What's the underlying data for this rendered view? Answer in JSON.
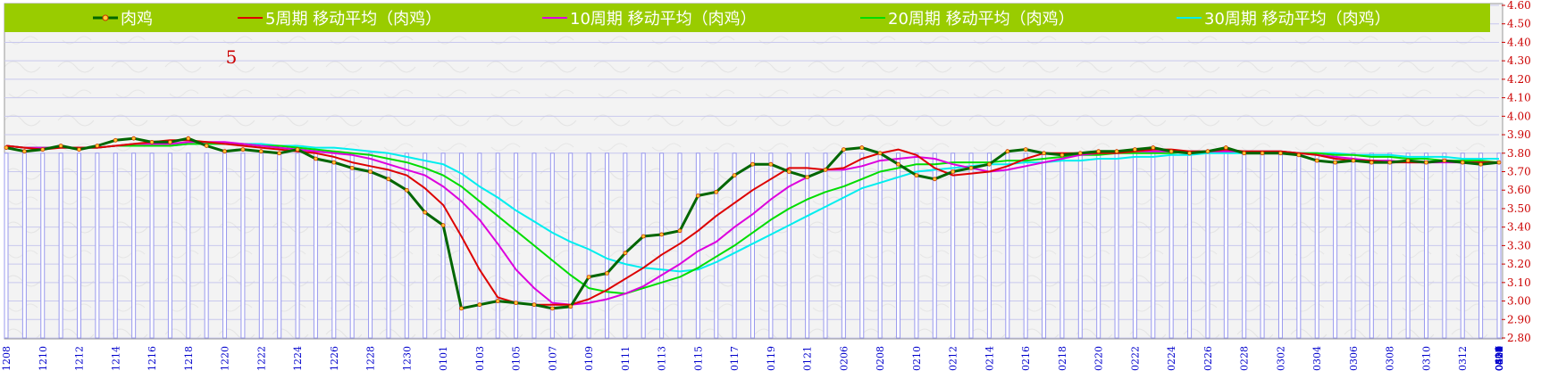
{
  "chart_data": {
    "type": "line",
    "annotation": "5",
    "ylim": [
      2.8,
      4.6
    ],
    "y_ticks": [
      "2.80",
      "2.90",
      "3.00",
      "3.10",
      "3.20",
      "3.30",
      "3.40",
      "3.50",
      "3.60",
      "3.70",
      "3.80",
      "3.90",
      "4.00",
      "4.10",
      "4.20",
      "4.30",
      "4.40",
      "4.50",
      "4.60"
    ],
    "x_ticks": [
      "1208",
      "1210",
      "1212",
      "1214",
      "1216",
      "1218",
      "1220",
      "1222",
      "1224",
      "1226",
      "1228",
      "1230",
      "0101",
      "0103",
      "0105",
      "0107",
      "0109",
      "0111",
      "0113",
      "0115",
      "0117",
      "0119",
      "0121",
      "0206",
      "0208",
      "0210",
      "0212",
      "0214",
      "0216",
      "0218",
      "0220",
      "0222",
      "0224",
      "0226",
      "0228",
      "0302",
      "0304",
      "0306",
      "0308",
      "0310",
      "0312",
      "0314",
      "0316",
      "0318",
      "0320",
      "0322",
      "0324",
      "0326",
      "0328",
      "0330",
      "0401",
      "0403",
      "0405",
      "0407",
      "0409",
      "0411",
      "0413",
      "0415",
      "0417",
      "0419",
      "0421",
      "0423",
      "0425",
      "0427",
      "0429",
      "0501",
      "0503",
      "0505",
      "0507",
      "0509",
      "0511",
      "0513",
      "0515",
      "0517",
      "0519",
      "0521",
      "0523",
      "0525",
      "0527",
      "0529",
      "0531",
      "0602",
      "0604"
    ],
    "legend_placement": "top",
    "series": [
      {
        "name": "肉鸡",
        "color": "#006600",
        "marker": true,
        "values": [
          3.83,
          3.81,
          3.82,
          3.84,
          3.82,
          3.84,
          3.87,
          3.88,
          3.86,
          3.86,
          3.88,
          3.84,
          3.81,
          3.82,
          3.81,
          3.8,
          3.82,
          3.77,
          3.75,
          3.72,
          3.7,
          3.66,
          3.6,
          3.48,
          3.41,
          2.96,
          2.98,
          3.0,
          2.99,
          2.98,
          2.96,
          2.97,
          3.13,
          3.15,
          3.26,
          3.35,
          3.36,
          3.38,
          3.57,
          3.59,
          3.68,
          3.74,
          3.74,
          3.7,
          3.67,
          3.71,
          3.82,
          3.83,
          3.8,
          3.74,
          3.68,
          3.66,
          3.7,
          3.72,
          3.74,
          3.81,
          3.82,
          3.8,
          3.79,
          3.8,
          3.81,
          3.81,
          3.82,
          3.83,
          3.81,
          3.8,
          3.81,
          3.83,
          3.8,
          3.8,
          3.8,
          3.79,
          3.76,
          3.75,
          3.76,
          3.75,
          3.75,
          3.76,
          3.75,
          3.76,
          3.75,
          3.74,
          3.75
        ]
      },
      {
        "name": "5周期 移动平均（肉鸡）",
        "color": "#dd0000",
        "marker": false,
        "values": [
          3.84,
          3.83,
          3.82,
          3.83,
          3.83,
          3.83,
          3.84,
          3.85,
          3.86,
          3.87,
          3.87,
          3.86,
          3.85,
          3.84,
          3.83,
          3.82,
          3.81,
          3.8,
          3.78,
          3.75,
          3.73,
          3.71,
          3.68,
          3.61,
          3.52,
          3.35,
          3.17,
          3.02,
          2.99,
          2.98,
          2.98,
          2.98,
          3.01,
          3.06,
          3.12,
          3.18,
          3.25,
          3.31,
          3.38,
          3.46,
          3.53,
          3.6,
          3.66,
          3.72,
          3.72,
          3.71,
          3.72,
          3.77,
          3.8,
          3.82,
          3.79,
          3.72,
          3.68,
          3.69,
          3.7,
          3.73,
          3.77,
          3.8,
          3.8,
          3.8,
          3.8,
          3.8,
          3.81,
          3.82,
          3.82,
          3.81,
          3.81,
          3.82,
          3.81,
          3.81,
          3.81,
          3.8,
          3.79,
          3.77,
          3.76,
          3.76,
          3.75,
          3.75,
          3.75,
          3.76,
          3.75,
          3.75,
          3.75
        ]
      },
      {
        "name": "10周期 移动平均（肉鸡）",
        "color": "#dd00dd",
        "marker": false,
        "values": [
          3.84,
          3.83,
          3.83,
          3.83,
          3.83,
          3.83,
          3.84,
          3.85,
          3.85,
          3.85,
          3.86,
          3.86,
          3.86,
          3.85,
          3.84,
          3.83,
          3.82,
          3.81,
          3.8,
          3.79,
          3.77,
          3.74,
          3.71,
          3.68,
          3.62,
          3.54,
          3.44,
          3.31,
          3.17,
          3.07,
          2.99,
          2.98,
          2.99,
          3.01,
          3.04,
          3.08,
          3.14,
          3.2,
          3.27,
          3.32,
          3.4,
          3.47,
          3.55,
          3.62,
          3.67,
          3.71,
          3.71,
          3.73,
          3.76,
          3.77,
          3.78,
          3.77,
          3.74,
          3.72,
          3.7,
          3.71,
          3.73,
          3.75,
          3.77,
          3.79,
          3.8,
          3.81,
          3.81,
          3.81,
          3.81,
          3.81,
          3.81,
          3.81,
          3.81,
          3.81,
          3.81,
          3.8,
          3.79,
          3.78,
          3.77,
          3.76,
          3.76,
          3.75,
          3.75,
          3.75,
          3.75,
          3.75,
          3.75
        ]
      },
      {
        "name": "20周期 移动平均（肉鸡）",
        "color": "#00dd00",
        "marker": false,
        "values": [
          3.84,
          3.83,
          3.83,
          3.83,
          3.83,
          3.83,
          3.84,
          3.84,
          3.84,
          3.84,
          3.85,
          3.85,
          3.85,
          3.85,
          3.84,
          3.84,
          3.83,
          3.82,
          3.81,
          3.8,
          3.79,
          3.77,
          3.75,
          3.72,
          3.68,
          3.62,
          3.54,
          3.46,
          3.38,
          3.3,
          3.22,
          3.14,
          3.07,
          3.05,
          3.04,
          3.07,
          3.1,
          3.13,
          3.18,
          3.24,
          3.3,
          3.37,
          3.44,
          3.5,
          3.55,
          3.59,
          3.62,
          3.66,
          3.7,
          3.72,
          3.74,
          3.74,
          3.75,
          3.75,
          3.75,
          3.76,
          3.76,
          3.77,
          3.78,
          3.79,
          3.79,
          3.8,
          3.8,
          3.8,
          3.8,
          3.81,
          3.81,
          3.81,
          3.81,
          3.81,
          3.81,
          3.8,
          3.8,
          3.79,
          3.79,
          3.78,
          3.78,
          3.77,
          3.77,
          3.76,
          3.76,
          3.76,
          3.75
        ]
      },
      {
        "name": "30周期 移动平均（肉鸡）",
        "color": "#00eeee",
        "marker": false,
        "values": [
          3.84,
          3.83,
          3.83,
          3.83,
          3.83,
          3.83,
          3.84,
          3.84,
          3.84,
          3.84,
          3.85,
          3.85,
          3.85,
          3.85,
          3.85,
          3.84,
          3.84,
          3.83,
          3.83,
          3.82,
          3.81,
          3.8,
          3.78,
          3.76,
          3.74,
          3.69,
          3.62,
          3.56,
          3.49,
          3.43,
          3.37,
          3.32,
          3.28,
          3.23,
          3.2,
          3.18,
          3.17,
          3.16,
          3.17,
          3.21,
          3.26,
          3.31,
          3.36,
          3.41,
          3.46,
          3.51,
          3.56,
          3.61,
          3.64,
          3.67,
          3.7,
          3.71,
          3.72,
          3.73,
          3.74,
          3.74,
          3.75,
          3.75,
          3.76,
          3.76,
          3.77,
          3.77,
          3.78,
          3.78,
          3.79,
          3.79,
          3.8,
          3.8,
          3.8,
          3.8,
          3.8,
          3.8,
          3.8,
          3.8,
          3.79,
          3.79,
          3.79,
          3.78,
          3.78,
          3.78,
          3.77,
          3.77,
          3.77
        ]
      }
    ]
  }
}
